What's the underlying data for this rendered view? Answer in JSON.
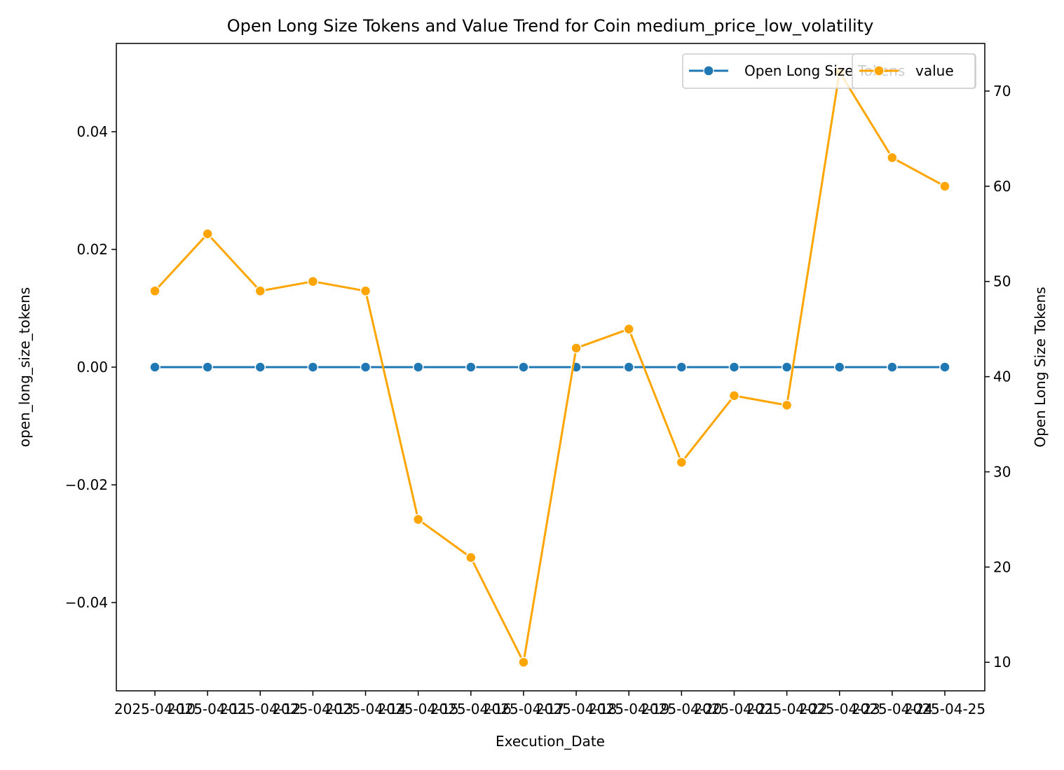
{
  "chart_data": {
    "type": "line",
    "title": "Open Long Size Tokens and Value Trend for Coin medium_price_low_volatility",
    "xlabel": "Execution_Date",
    "ylabel_left": "open_long_size_tokens",
    "ylabel_right": "Open Long Size Tokens",
    "x_tick_labels": [
      "2025-04-10",
      "2025-04-11",
      "2025-04-12",
      "2025-04-13",
      "2025-04-14",
      "2025-04-15",
      "2025-04-16",
      "2025-04-17",
      "2025-04-18",
      "2025-04-19",
      "2025-04-20",
      "2025-04-21",
      "2025-04-22",
      "2025-04-23",
      "2025-04-24",
      "2025-04-25"
    ],
    "ylim_left": [
      -0.055,
      0.055
    ],
    "yticks_left": [
      {
        "v": -0.04,
        "label": "−0.04"
      },
      {
        "v": -0.02,
        "label": "−0.02"
      },
      {
        "v": 0.0,
        "label": "0.00"
      },
      {
        "v": 0.02,
        "label": "0.02"
      },
      {
        "v": 0.04,
        "label": "0.04"
      }
    ],
    "ylim_right": [
      7,
      75
    ],
    "yticks_right": [
      {
        "v": 10,
        "label": "10"
      },
      {
        "v": 20,
        "label": "20"
      },
      {
        "v": 30,
        "label": "30"
      },
      {
        "v": 40,
        "label": "40"
      },
      {
        "v": 50,
        "label": "50"
      },
      {
        "v": 60,
        "label": "60"
      },
      {
        "v": 70,
        "label": "70"
      }
    ],
    "series": [
      {
        "name": "Open Long Size Tokens",
        "axis": "left",
        "color": "#1f77b4",
        "values": [
          0,
          0,
          0,
          0,
          0,
          0,
          0,
          0,
          0,
          0,
          0,
          0,
          0,
          0,
          0,
          0
        ]
      },
      {
        "name": "value",
        "axis": "right",
        "color": "#ffa500",
        "values": [
          49,
          55,
          49,
          50,
          49,
          25,
          21,
          10,
          43,
          45,
          31,
          38,
          37,
          72,
          63,
          60
        ]
      }
    ],
    "legend_position": "upper right",
    "grid": false
  }
}
